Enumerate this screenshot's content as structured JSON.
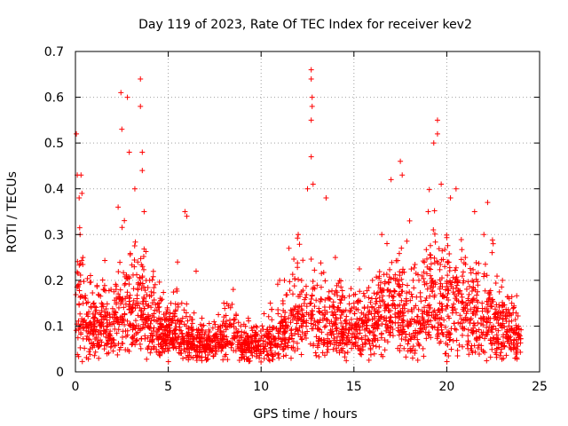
{
  "chart_data": {
    "type": "scatter",
    "title": "Day 119 of 2023, Rate Of TEC Index for receiver kev2",
    "xlabel": "GPS time / hours",
    "ylabel": "ROTI / TECUs",
    "xlim": [
      0,
      25
    ],
    "ylim": [
      0,
      0.7
    ],
    "x_ticks": [
      0,
      5,
      10,
      15,
      20,
      25
    ],
    "x_tick_labels": [
      "0",
      "5",
      "10",
      "15",
      "20",
      "25"
    ],
    "y_ticks": [
      0,
      0.1,
      0.2,
      0.3,
      0.4,
      0.5,
      0.6,
      0.7
    ],
    "y_tick_labels": [
      "0",
      "0.1",
      "0.2",
      "0.3",
      "0.4",
      "0.5",
      "0.6",
      "0.7"
    ],
    "grid": true,
    "marker": "+",
    "series": [
      {
        "name": "ROTI",
        "color": "#ff0000",
        "x_range_hours": [
          0,
          24
        ],
        "sample_points": [
          [
            0.05,
            0.52
          ],
          [
            0.1,
            0.43
          ],
          [
            0.2,
            0.38
          ],
          [
            0.3,
            0.43
          ],
          [
            0.35,
            0.39
          ],
          [
            0.25,
            0.3
          ],
          [
            0.4,
            0.25
          ],
          [
            0.6,
            0.15
          ],
          [
            1.0,
            0.1
          ],
          [
            1.5,
            0.18
          ],
          [
            2.0,
            0.12
          ],
          [
            2.3,
            0.36
          ],
          [
            2.45,
            0.61
          ],
          [
            2.5,
            0.53
          ],
          [
            2.8,
            0.6
          ],
          [
            2.9,
            0.48
          ],
          [
            3.2,
            0.4
          ],
          [
            3.5,
            0.64
          ],
          [
            3.5,
            0.58
          ],
          [
            3.6,
            0.48
          ],
          [
            3.6,
            0.44
          ],
          [
            3.7,
            0.35
          ],
          [
            4.0,
            0.2
          ],
          [
            4.5,
            0.15
          ],
          [
            5.0,
            0.1
          ],
          [
            5.5,
            0.24
          ],
          [
            5.9,
            0.35
          ],
          [
            6.0,
            0.34
          ],
          [
            6.5,
            0.22
          ],
          [
            7.0,
            0.05
          ],
          [
            7.5,
            0.08
          ],
          [
            8.0,
            0.12
          ],
          [
            8.5,
            0.18
          ],
          [
            9.0,
            0.06
          ],
          [
            10.0,
            0.04
          ],
          [
            10.5,
            0.15
          ],
          [
            11.0,
            0.2
          ],
          [
            11.5,
            0.27
          ],
          [
            12.0,
            0.3
          ],
          [
            12.5,
            0.4
          ],
          [
            12.7,
            0.66
          ],
          [
            12.7,
            0.64
          ],
          [
            12.75,
            0.6
          ],
          [
            12.75,
            0.58
          ],
          [
            12.7,
            0.55
          ],
          [
            12.7,
            0.47
          ],
          [
            12.8,
            0.41
          ],
          [
            13.5,
            0.38
          ],
          [
            14.0,
            0.25
          ],
          [
            15.0,
            0.15
          ],
          [
            16.0,
            0.2
          ],
          [
            16.5,
            0.3
          ],
          [
            17.0,
            0.42
          ],
          [
            17.5,
            0.46
          ],
          [
            17.6,
            0.43
          ],
          [
            18.0,
            0.33
          ],
          [
            18.5,
            0.2
          ],
          [
            19.0,
            0.35
          ],
          [
            19.3,
            0.5
          ],
          [
            19.5,
            0.55
          ],
          [
            19.5,
            0.52
          ],
          [
            19.7,
            0.41
          ],
          [
            20.2,
            0.38
          ],
          [
            20.5,
            0.4
          ],
          [
            21.0,
            0.25
          ],
          [
            21.5,
            0.35
          ],
          [
            22.0,
            0.3
          ],
          [
            22.2,
            0.37
          ],
          [
            22.5,
            0.28
          ],
          [
            23.0,
            0.2
          ],
          [
            23.5,
            0.15
          ],
          [
            23.9,
            0.08
          ]
        ]
      }
    ]
  }
}
